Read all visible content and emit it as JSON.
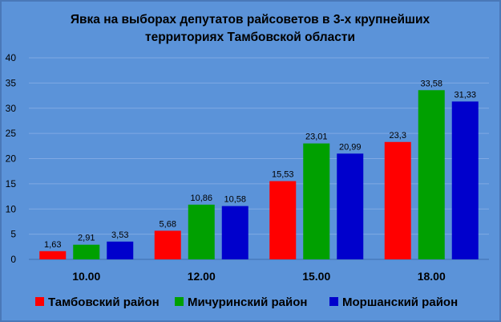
{
  "chart_data": {
    "type": "bar",
    "title_lines": [
      "Явка на выборах депутатов райсоветов в 3-х крупнейших",
      "территориях Тамбовской области"
    ],
    "categories": [
      "10.00",
      "12.00",
      "15.00",
      "18.00"
    ],
    "series": [
      {
        "name": "Тамбовский район",
        "color": "#ff0000",
        "values": [
          1.63,
          5.68,
          15.53,
          23.3
        ],
        "labels": [
          "1,63",
          "5,68",
          "15,53",
          "23,3"
        ]
      },
      {
        "name": "Мичуринский район",
        "color": "#00a000",
        "values": [
          2.91,
          10.86,
          23.01,
          33.58
        ],
        "labels": [
          "2,91",
          "10,86",
          "23,01",
          "33,58"
        ]
      },
      {
        "name": "Моршанский район",
        "color": "#0000cc",
        "values": [
          3.53,
          10.58,
          20.99,
          31.33
        ],
        "labels": [
          "3,53",
          "10,58",
          "20,99",
          "31,33"
        ]
      }
    ],
    "yticks": [
      "0",
      "5",
      "10",
      "15",
      "20",
      "25",
      "30",
      "35",
      "40"
    ],
    "ylim": [
      0,
      40
    ],
    "grid": true,
    "legend_position": "bottom"
  }
}
